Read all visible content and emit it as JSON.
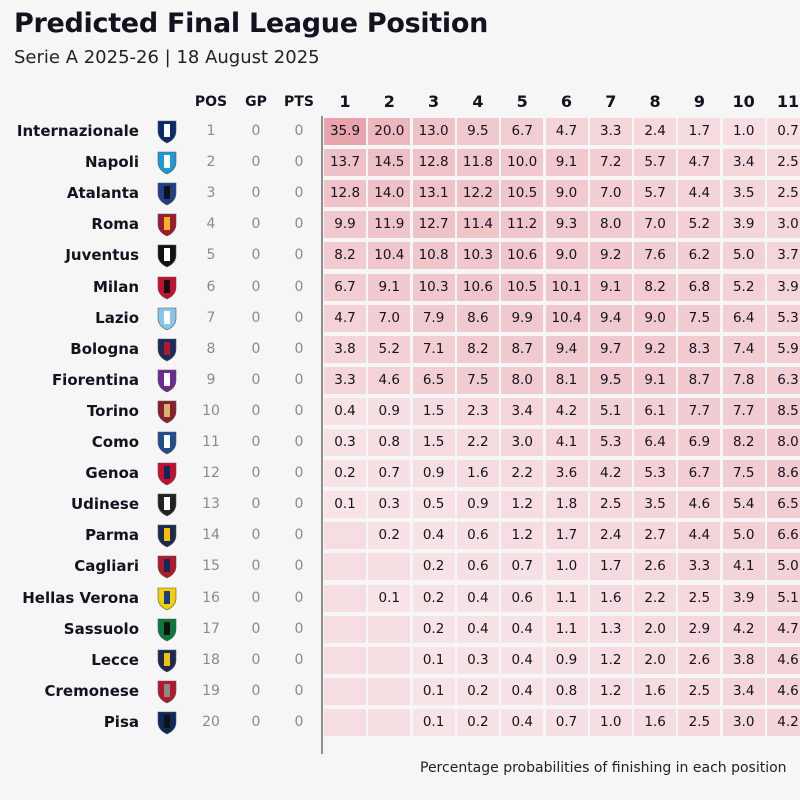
{
  "chart_data": {
    "type": "heatmap",
    "title": "Predicted Final League Position",
    "subtitle": "Serie A 2025-26 | 18 August 2025",
    "footnote": "Percentage probabilities of finishing in each position",
    "stat_headers": [
      "POS",
      "GP",
      "PTS"
    ],
    "position_headers": [
      "1",
      "2",
      "3",
      "4",
      "5",
      "6",
      "7",
      "8",
      "9",
      "10",
      "11"
    ],
    "teams": [
      {
        "name": "Internazionale",
        "pos": 1,
        "gp": 0,
        "pts": 0,
        "probs": [
          35.9,
          20.0,
          13.0,
          9.5,
          6.7,
          4.7,
          3.3,
          2.4,
          1.7,
          1.0,
          0.7
        ]
      },
      {
        "name": "Napoli",
        "pos": 2,
        "gp": 0,
        "pts": 0,
        "probs": [
          13.7,
          14.5,
          12.8,
          11.8,
          10.0,
          9.1,
          7.2,
          5.7,
          4.7,
          3.4,
          2.5
        ]
      },
      {
        "name": "Atalanta",
        "pos": 3,
        "gp": 0,
        "pts": 0,
        "probs": [
          12.8,
          14.0,
          13.1,
          12.2,
          10.5,
          9.0,
          7.0,
          5.7,
          4.4,
          3.5,
          2.5
        ]
      },
      {
        "name": "Roma",
        "pos": 4,
        "gp": 0,
        "pts": 0,
        "probs": [
          9.9,
          11.9,
          12.7,
          11.4,
          11.2,
          9.3,
          8.0,
          7.0,
          5.2,
          3.9,
          3.0
        ]
      },
      {
        "name": "Juventus",
        "pos": 5,
        "gp": 0,
        "pts": 0,
        "probs": [
          8.2,
          10.4,
          10.8,
          10.3,
          10.6,
          9.0,
          9.2,
          7.6,
          6.2,
          5.0,
          3.7
        ]
      },
      {
        "name": "Milan",
        "pos": 6,
        "gp": 0,
        "pts": 0,
        "probs": [
          6.7,
          9.1,
          10.3,
          10.6,
          10.5,
          10.1,
          9.1,
          8.2,
          6.8,
          5.2,
          3.9
        ]
      },
      {
        "name": "Lazio",
        "pos": 7,
        "gp": 0,
        "pts": 0,
        "probs": [
          4.7,
          7.0,
          7.9,
          8.6,
          9.9,
          10.4,
          9.4,
          9.0,
          7.5,
          6.4,
          5.3
        ]
      },
      {
        "name": "Bologna",
        "pos": 8,
        "gp": 0,
        "pts": 0,
        "probs": [
          3.8,
          5.2,
          7.1,
          8.2,
          8.7,
          9.4,
          9.7,
          9.2,
          8.3,
          7.4,
          5.9
        ]
      },
      {
        "name": "Fiorentina",
        "pos": 9,
        "gp": 0,
        "pts": 0,
        "probs": [
          3.3,
          4.6,
          6.5,
          7.5,
          8.0,
          8.1,
          9.5,
          9.1,
          8.7,
          7.8,
          6.3
        ]
      },
      {
        "name": "Torino",
        "pos": 10,
        "gp": 0,
        "pts": 0,
        "probs": [
          0.4,
          0.9,
          1.5,
          2.3,
          3.4,
          4.2,
          5.1,
          6.1,
          7.7,
          7.7,
          8.5
        ]
      },
      {
        "name": "Como",
        "pos": 11,
        "gp": 0,
        "pts": 0,
        "probs": [
          0.3,
          0.8,
          1.5,
          2.2,
          3.0,
          4.1,
          5.3,
          6.4,
          6.9,
          8.2,
          8.0
        ]
      },
      {
        "name": "Genoa",
        "pos": 12,
        "gp": 0,
        "pts": 0,
        "probs": [
          0.2,
          0.7,
          0.9,
          1.6,
          2.2,
          3.6,
          4.2,
          5.3,
          6.7,
          7.5,
          8.6
        ]
      },
      {
        "name": "Udinese",
        "pos": 13,
        "gp": 0,
        "pts": 0,
        "probs": [
          0.1,
          0.3,
          0.5,
          0.9,
          1.2,
          1.8,
          2.5,
          3.5,
          4.6,
          5.4,
          6.5
        ]
      },
      {
        "name": "Parma",
        "pos": 14,
        "gp": 0,
        "pts": 0,
        "probs": [
          null,
          0.2,
          0.4,
          0.6,
          1.2,
          1.7,
          2.4,
          2.7,
          4.4,
          5.0,
          6.6
        ]
      },
      {
        "name": "Cagliari",
        "pos": 15,
        "gp": 0,
        "pts": 0,
        "probs": [
          null,
          null,
          0.2,
          0.6,
          0.7,
          1.0,
          1.7,
          2.6,
          3.3,
          4.1,
          5.0
        ]
      },
      {
        "name": "Hellas Verona",
        "pos": 16,
        "gp": 0,
        "pts": 0,
        "probs": [
          null,
          0.1,
          0.2,
          0.4,
          0.6,
          1.1,
          1.6,
          2.2,
          2.5,
          3.9,
          5.1
        ]
      },
      {
        "name": "Sassuolo",
        "pos": 17,
        "gp": 0,
        "pts": 0,
        "probs": [
          null,
          null,
          0.2,
          0.4,
          0.4,
          1.1,
          1.3,
          2.0,
          2.9,
          4.2,
          4.7
        ]
      },
      {
        "name": "Lecce",
        "pos": 18,
        "gp": 0,
        "pts": 0,
        "probs": [
          null,
          null,
          0.1,
          0.3,
          0.4,
          0.9,
          1.2,
          2.0,
          2.6,
          3.8,
          4.6
        ]
      },
      {
        "name": "Cremonese",
        "pos": 19,
        "gp": 0,
        "pts": 0,
        "probs": [
          null,
          null,
          0.1,
          0.2,
          0.4,
          0.8,
          1.2,
          1.6,
          2.5,
          3.4,
          4.6
        ]
      },
      {
        "name": "Pisa",
        "pos": 20,
        "gp": 0,
        "pts": 0,
        "probs": [
          null,
          null,
          0.1,
          0.2,
          0.4,
          0.7,
          1.0,
          1.6,
          2.5,
          3.0,
          4.2
        ]
      }
    ],
    "crest_colors": {
      "Internazionale": [
        "#0a2a6b",
        "#ffffff"
      ],
      "Napoli": [
        "#1b9ad6",
        "#ffffff"
      ],
      "Atalanta": [
        "#1e3f8a",
        "#111111"
      ],
      "Roma": [
        "#9b1b30",
        "#f0b323"
      ],
      "Juventus": [
        "#111111",
        "#ffffff"
      ],
      "Milan": [
        "#c8102e",
        "#111111"
      ],
      "Lazio": [
        "#87c6ea",
        "#ffffff"
      ],
      "Bologna": [
        "#1a2c5b",
        "#b3192b"
      ],
      "Fiorentina": [
        "#6b2c91",
        "#ffffff"
      ],
      "Torino": [
        "#8b1e2d",
        "#d8b26a"
      ],
      "Como": [
        "#1f4e8c",
        "#ffffff"
      ],
      "Genoa": [
        "#c8102e",
        "#0b2a5b"
      ],
      "Udinese": [
        "#222222",
        "#ffffff"
      ],
      "Parma": [
        "#1b2a52",
        "#f2c200"
      ],
      "Cagliari": [
        "#b3192b",
        "#0d2b5b"
      ],
      "Hellas Verona": [
        "#f4d000",
        "#1a3c8a"
      ],
      "Sassuolo": [
        "#0a7a3a",
        "#111111"
      ],
      "Lecce": [
        "#1b2a52",
        "#f2c200"
      ],
      "Cremonese": [
        "#b3192b",
        "#8a8a8a"
      ],
      "Pisa": [
        "#0b2a5b",
        "#111111"
      ]
    },
    "colors": {
      "empty": "#f5dde1",
      "max": "#e7a4ac",
      "min": "#f8e6e9",
      "stat": "#8a8a8a"
    }
  }
}
